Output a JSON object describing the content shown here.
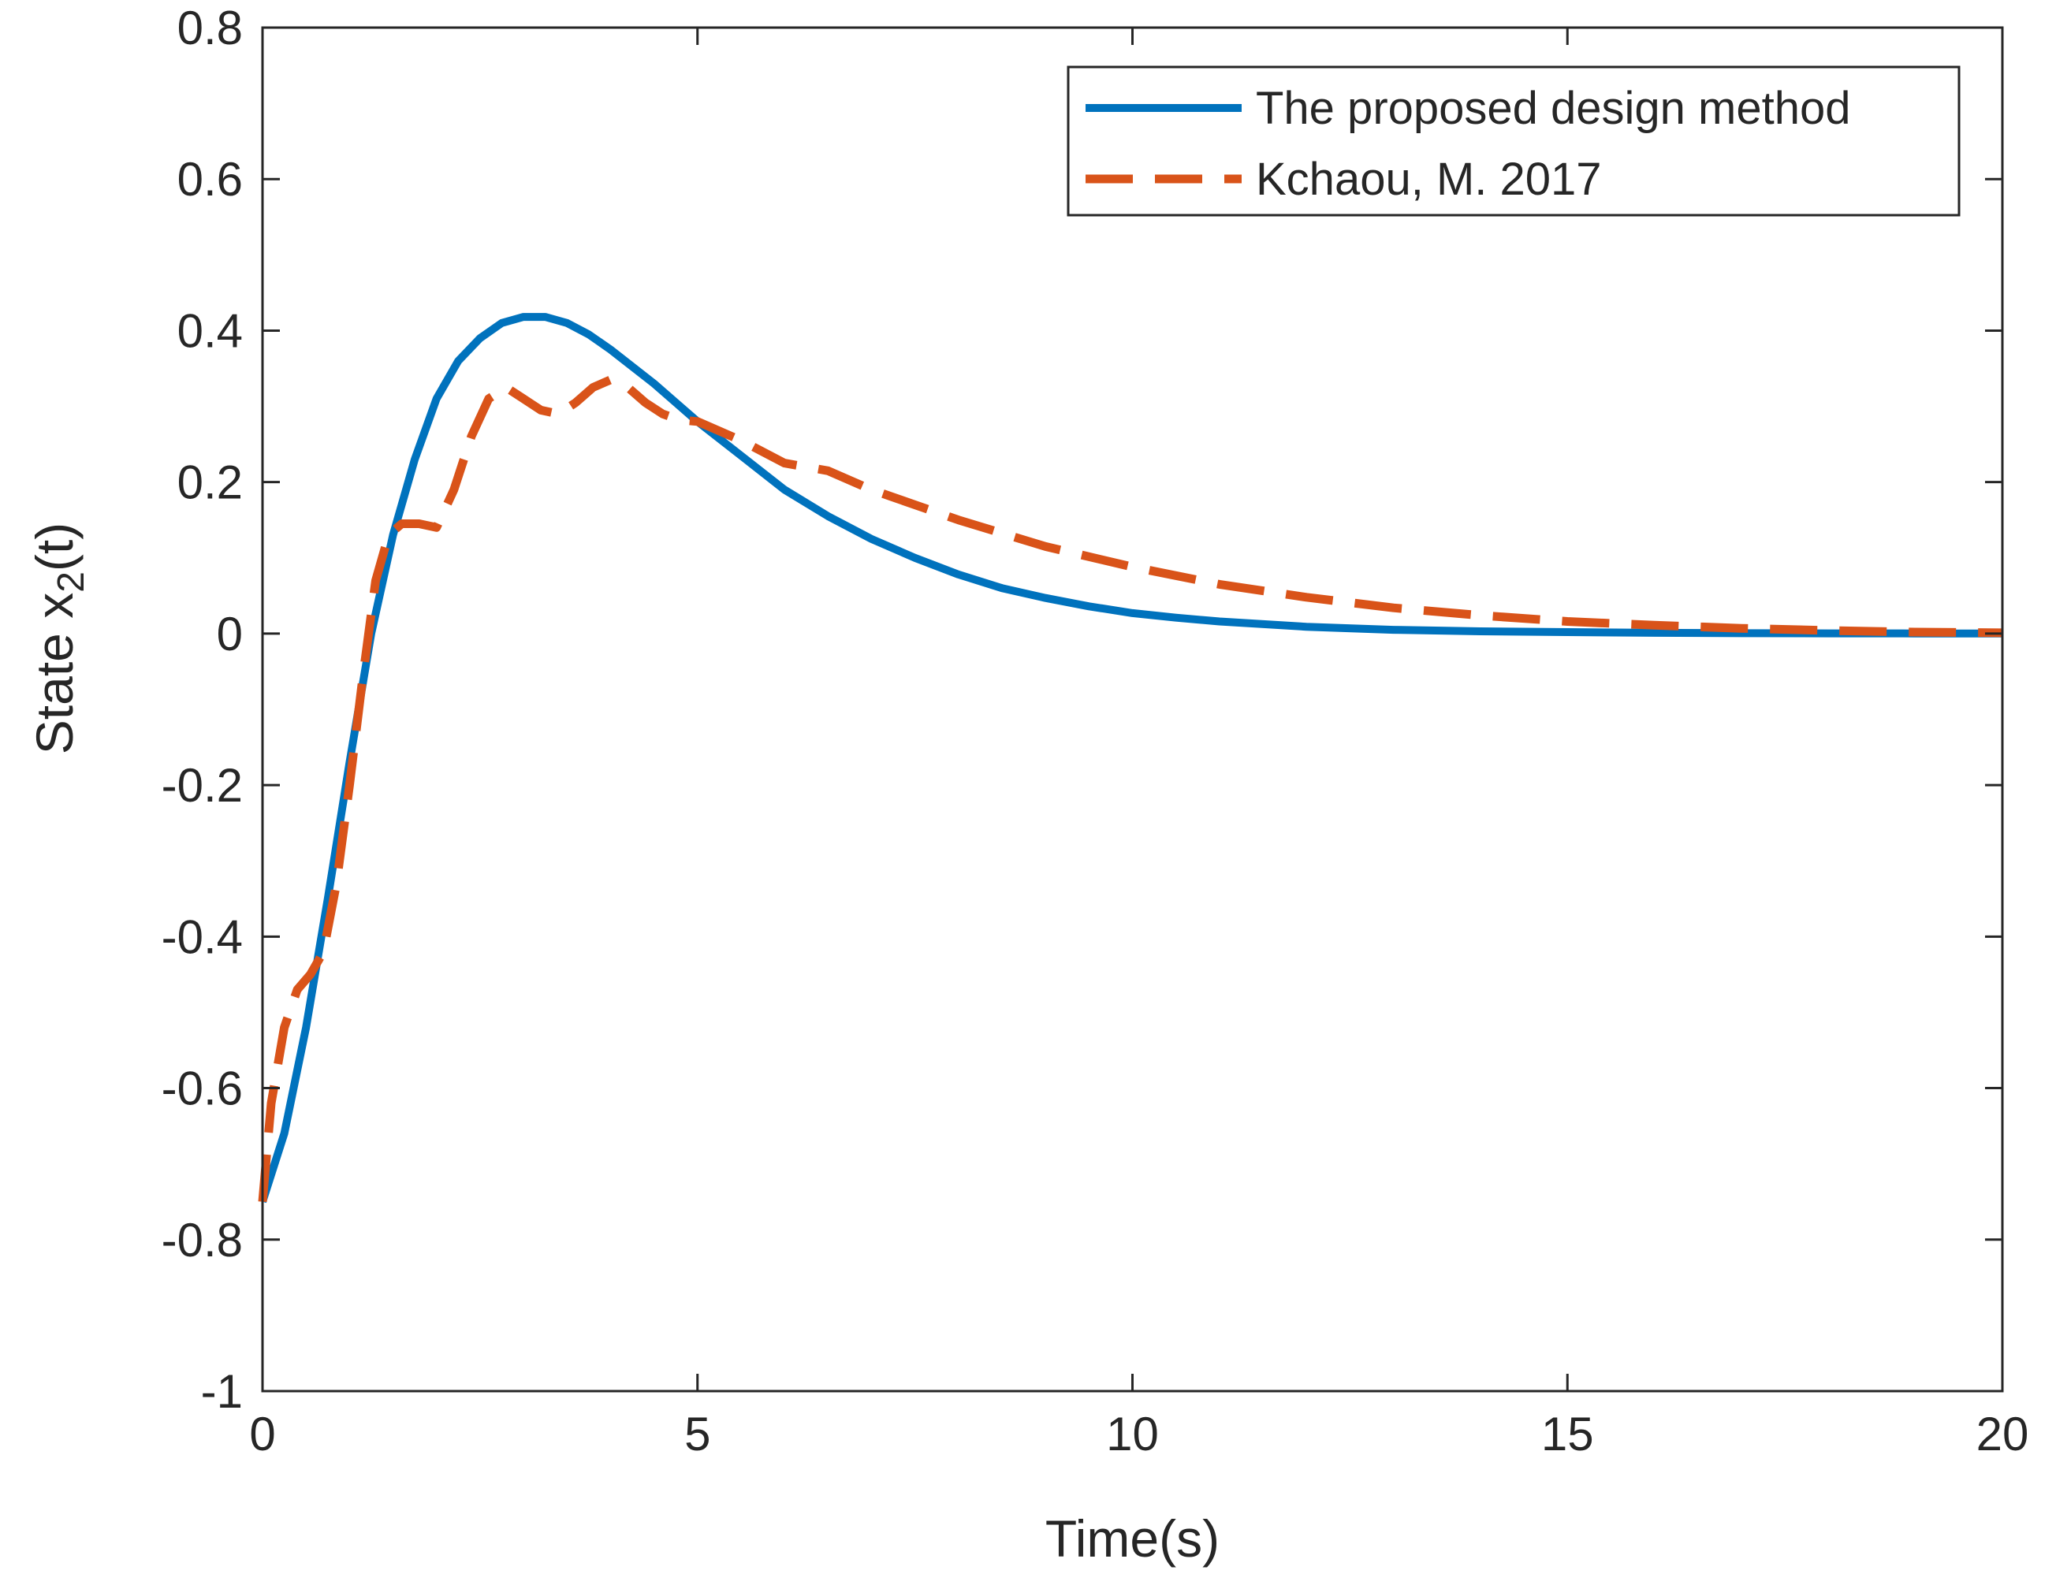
{
  "chart_data": {
    "type": "line",
    "title": "",
    "xlabel": "Time(s)",
    "ylabel": {
      "main": "State x",
      "subscript": "2",
      "suffix": "(t)"
    },
    "xlim": [
      0,
      20
    ],
    "ylim": [
      -1,
      0.8
    ],
    "xticks": [
      0,
      5,
      10,
      15,
      20
    ],
    "xtick_labels": [
      "0",
      "5",
      "10",
      "15",
      "20"
    ],
    "yticks": [
      -1,
      -0.8,
      -0.6,
      -0.4,
      -0.2,
      0,
      0.2,
      0.4,
      0.6,
      0.8
    ],
    "ytick_labels": [
      "-1",
      "-0.8",
      "-0.6",
      "-0.4",
      "-0.2",
      "0",
      "0.2",
      "0.4",
      "0.6",
      "0.8"
    ],
    "grid": false,
    "legend_position": "top-right",
    "series": [
      {
        "name": "The proposed design method",
        "color": "#0072BD",
        "style": "solid",
        "x": [
          0,
          0.25,
          0.5,
          0.75,
          1.0,
          1.25,
          1.5,
          1.75,
          2.0,
          2.25,
          2.5,
          2.75,
          3.0,
          3.25,
          3.5,
          3.75,
          4.0,
          4.5,
          5.0,
          5.5,
          6.0,
          6.5,
          7.0,
          7.5,
          8.0,
          8.5,
          9.0,
          9.5,
          10.0,
          10.5,
          11.0,
          12.0,
          13.0,
          14.0,
          15.0,
          16.0,
          17.0,
          18.0,
          19.0,
          20.0
        ],
        "y": [
          -0.75,
          -0.66,
          -0.52,
          -0.35,
          -0.17,
          0.0,
          0.13,
          0.23,
          0.31,
          0.36,
          0.39,
          0.41,
          0.418,
          0.418,
          0.41,
          0.395,
          0.375,
          0.33,
          0.28,
          0.235,
          0.19,
          0.155,
          0.125,
          0.1,
          0.078,
          0.06,
          0.047,
          0.036,
          0.027,
          0.021,
          0.016,
          0.009,
          0.005,
          0.003,
          0.002,
          0.001,
          0.0005,
          0.0003,
          0.0002,
          0.0001
        ]
      },
      {
        "name": "Kchaou, M. 2017",
        "color": "#D95319",
        "style": "dashed",
        "x": [
          0,
          0.1,
          0.25,
          0.4,
          0.55,
          0.7,
          0.85,
          1.0,
          1.15,
          1.3,
          1.45,
          1.6,
          1.8,
          2.0,
          2.2,
          2.4,
          2.6,
          2.8,
          3.0,
          3.2,
          3.4,
          3.6,
          3.8,
          4.0,
          4.2,
          4.4,
          4.6,
          4.8,
          5.0,
          5.5,
          6.0,
          6.5,
          7.0,
          8.0,
          9.0,
          10.0,
          11.0,
          12.0,
          13.0,
          14.0,
          15.0,
          16.0,
          17.0,
          18.0,
          19.0,
          20.0
        ],
        "y": [
          -0.75,
          -0.62,
          -0.52,
          -0.47,
          -0.45,
          -0.42,
          -0.33,
          -0.2,
          -0.06,
          0.07,
          0.13,
          0.145,
          0.145,
          0.14,
          0.19,
          0.26,
          0.31,
          0.325,
          0.31,
          0.295,
          0.29,
          0.305,
          0.325,
          0.335,
          0.325,
          0.305,
          0.29,
          0.282,
          0.28,
          0.255,
          0.225,
          0.215,
          0.19,
          0.15,
          0.115,
          0.088,
          0.065,
          0.048,
          0.034,
          0.024,
          0.016,
          0.011,
          0.007,
          0.004,
          0.002,
          0.001
        ]
      }
    ]
  }
}
